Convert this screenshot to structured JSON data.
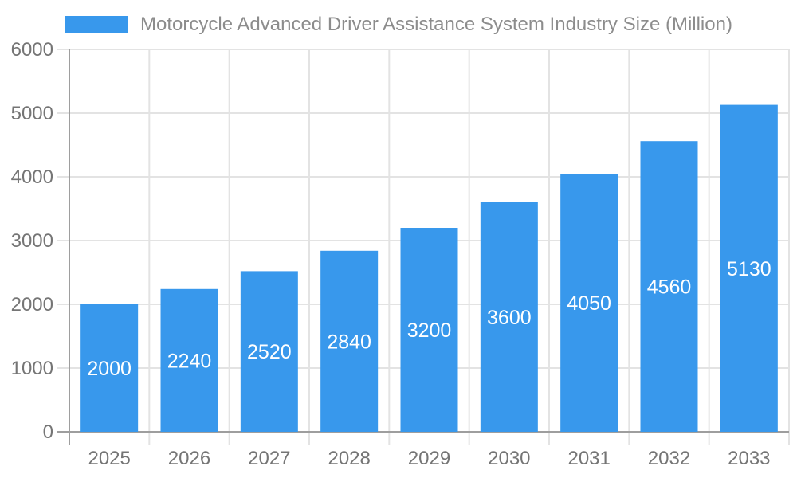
{
  "chart_data": {
    "type": "bar",
    "legend_label": "Motorcycle Advanced Driver Assistance System Industry Size (Million)",
    "categories": [
      "2025",
      "2026",
      "2027",
      "2028",
      "2029",
      "2030",
      "2031",
      "2032",
      "2033"
    ],
    "values": [
      2000,
      2240,
      2520,
      2840,
      3200,
      3600,
      4050,
      4560,
      5130
    ],
    "value_labels": [
      "2000",
      "2240",
      "2520",
      "2840",
      "3200",
      "3600",
      "4050",
      "4560",
      "5130"
    ],
    "ylabel": "",
    "xlabel": "",
    "ylim": [
      0,
      6000
    ],
    "ytick_step": 1000,
    "yticks": [
      "0",
      "1000",
      "2000",
      "3000",
      "4000",
      "5000",
      "6000"
    ],
    "grid": true,
    "legend_position": "top",
    "colors": {
      "bar": "#3898EC",
      "grid": "#e3e3e3",
      "axis": "#9e9e9e",
      "tick_label": "#757575",
      "legend_label": "#8c8c8c",
      "value_label": "#ffffff",
      "background": "#ffffff"
    }
  }
}
